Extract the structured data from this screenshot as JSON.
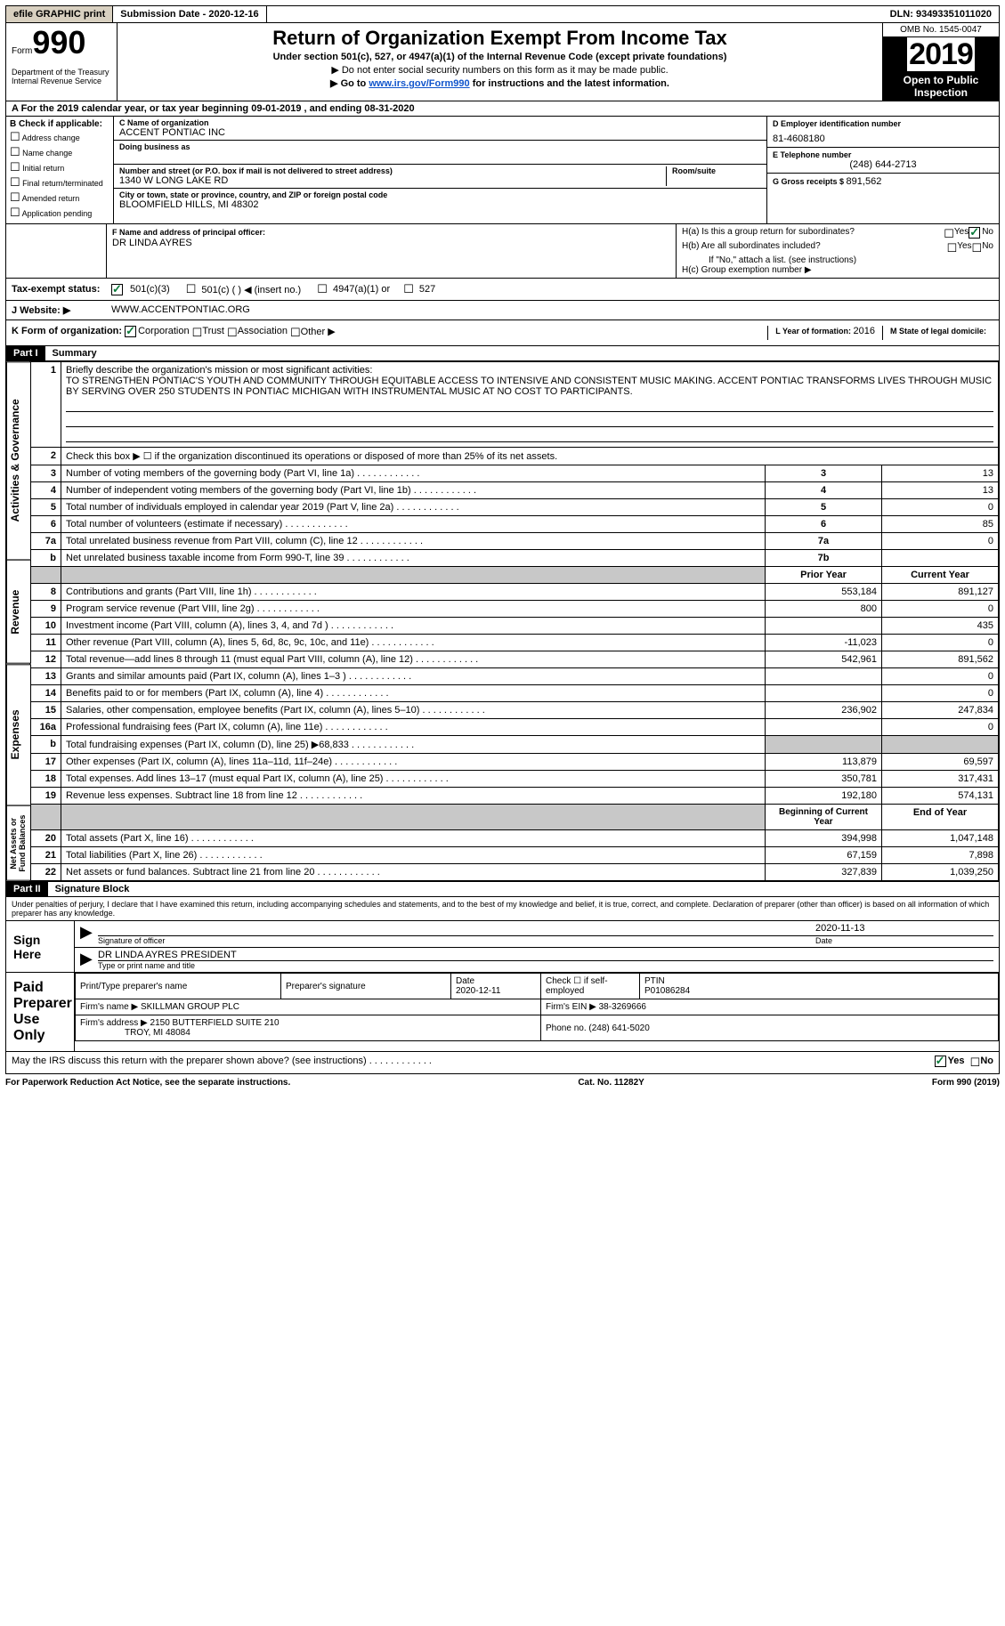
{
  "topbar": {
    "efile": "efile GRAPHIC print",
    "submission_label": "Submission Date - ",
    "submission_date": "2020-12-16",
    "dln_label": "DLN: ",
    "dln": "93493351011020"
  },
  "header": {
    "form_label": "Form",
    "form_number": "990",
    "title": "Return of Organization Exempt From Income Tax",
    "subtitle": "Under section 501(c), 527, or 4947(a)(1) of the Internal Revenue Code (except private foundations)",
    "note1": "▶ Do not enter social security numbers on this form as it may be made public.",
    "note2_pre": "▶ Go to ",
    "note2_link": "www.irs.gov/Form990",
    "note2_post": " for instructions and the latest information.",
    "omb": "OMB No. 1545-0047",
    "year": "2019",
    "open": "Open to Public Inspection",
    "dept": "Department of the Treasury\nInternal Revenue Service"
  },
  "line_a": {
    "text_pre": "A For the 2019 calendar year, or tax year beginning ",
    "begin": "09-01-2019",
    "text_mid": " , and ending ",
    "end": "08-31-2020"
  },
  "box_b": {
    "title": "B Check if applicable:",
    "items": [
      "Address change",
      "Name change",
      "Initial return",
      "Final return/terminated",
      "Amended return",
      "Application pending"
    ]
  },
  "box_c": {
    "name_lbl": "C Name of organization",
    "name": "ACCENT PONTIAC INC",
    "dba_lbl": "Doing business as",
    "street_lbl": "Number and street (or P.O. box if mail is not delivered to street address)",
    "room_lbl": "Room/suite",
    "street": "1340 W LONG LAKE RD",
    "city_lbl": "City or town, state or province, country, and ZIP or foreign postal code",
    "city": "BLOOMFIELD HILLS, MI  48302"
  },
  "box_d": {
    "ein_lbl": "D Employer identification number",
    "ein": "81-4608180",
    "phone_lbl": "E Telephone number",
    "phone": "(248) 644-2713",
    "gross_lbl": "G Gross receipts $ ",
    "gross": "891,562"
  },
  "box_f": {
    "lbl": "F Name and address of principal officer:",
    "name": "DR LINDA AYRES"
  },
  "box_h": {
    "ha": "H(a)  Is this a group return for subordinates?",
    "hb": "H(b)  Are all subordinates included?",
    "hb_note": "If \"No,\" attach a list. (see instructions)",
    "hc": "H(c)  Group exemption number ▶",
    "yes": "Yes",
    "no": "No"
  },
  "line_i": {
    "lbl": "Tax-exempt status:",
    "o1": "501(c)(3)",
    "o2": "501(c) (   ) ◀ (insert no.)",
    "o3": "4947(a)(1) or",
    "o4": "527"
  },
  "line_j": {
    "lbl": "J     Website: ▶",
    "val": "WWW.ACCENTPONTIAC.ORG"
  },
  "line_k": {
    "lbl": "K Form of organization:",
    "o1": "Corporation",
    "o2": "Trust",
    "o3": "Association",
    "o4": "Other ▶",
    "l_lbl": "L Year of formation: ",
    "l_val": "2016",
    "m_lbl": "M State of legal domicile:",
    "m_val": ""
  },
  "part1": {
    "part": "Part I",
    "title": "Summary",
    "q1_lbl": "1",
    "q1": "Briefly describe the organization's mission or most significant activities:",
    "mission": "TO STRENGTHEN PONTIAC'S YOUTH AND COMMUNITY THROUGH EQUITABLE ACCESS TO INTENSIVE AND CONSISTENT MUSIC MAKING. ACCENT PONTIAC TRANSFORMS LIVES THROUGH MUSIC BY SERVING OVER 250 STUDENTS IN PONTIAC MICHIGAN WITH INSTRUMENTAL MUSIC AT NO COST TO PARTICIPANTS.",
    "q2": "Check this box ▶ ☐  if the organization discontinued its operations or disposed of more than 25% of its net assets.",
    "sidebar1": "Activities & Governance",
    "sidebar2": "Revenue",
    "sidebar3": "Expenses",
    "sidebar4": "Net Assets or Fund Balances",
    "col_prior": "Prior Year",
    "col_current": "Current Year",
    "col_begin": "Beginning of Current Year",
    "col_end": "End of Year",
    "rows_gov": [
      {
        "n": "3",
        "t": "Number of voting members of the governing body (Part VI, line 1a)",
        "box": "3",
        "v": "13"
      },
      {
        "n": "4",
        "t": "Number of independent voting members of the governing body (Part VI, line 1b)",
        "box": "4",
        "v": "13"
      },
      {
        "n": "5",
        "t": "Total number of individuals employed in calendar year 2019 (Part V, line 2a)",
        "box": "5",
        "v": "0"
      },
      {
        "n": "6",
        "t": "Total number of volunteers (estimate if necessary)",
        "box": "6",
        "v": "85"
      },
      {
        "n": "7a",
        "t": "Total unrelated business revenue from Part VIII, column (C), line 12",
        "box": "7a",
        "v": "0"
      },
      {
        "n": "b",
        "t": "Net unrelated business taxable income from Form 990-T, line 39",
        "box": "7b",
        "v": ""
      }
    ],
    "rows_rev": [
      {
        "n": "8",
        "t": "Contributions and grants (Part VIII, line 1h)",
        "p": "553,184",
        "c": "891,127"
      },
      {
        "n": "9",
        "t": "Program service revenue (Part VIII, line 2g)",
        "p": "800",
        "c": "0"
      },
      {
        "n": "10",
        "t": "Investment income (Part VIII, column (A), lines 3, 4, and 7d )",
        "p": "",
        "c": "435"
      },
      {
        "n": "11",
        "t": "Other revenue (Part VIII, column (A), lines 5, 6d, 8c, 9c, 10c, and 11e)",
        "p": "-11,023",
        "c": "0"
      },
      {
        "n": "12",
        "t": "Total revenue—add lines 8 through 11 (must equal Part VIII, column (A), line 12)",
        "p": "542,961",
        "c": "891,562"
      }
    ],
    "rows_exp": [
      {
        "n": "13",
        "t": "Grants and similar amounts paid (Part IX, column (A), lines 1–3 )",
        "p": "",
        "c": "0"
      },
      {
        "n": "14",
        "t": "Benefits paid to or for members (Part IX, column (A), line 4)",
        "p": "",
        "c": "0"
      },
      {
        "n": "15",
        "t": "Salaries, other compensation, employee benefits (Part IX, column (A), lines 5–10)",
        "p": "236,902",
        "c": "247,834"
      },
      {
        "n": "16a",
        "t": "Professional fundraising fees (Part IX, column (A), line 11e)",
        "p": "",
        "c": "0"
      },
      {
        "n": "b",
        "t": "Total fundraising expenses (Part IX, column (D), line 25) ▶68,833",
        "p": "grey",
        "c": "grey"
      },
      {
        "n": "17",
        "t": "Other expenses (Part IX, column (A), lines 11a–11d, 11f–24e)",
        "p": "113,879",
        "c": "69,597"
      },
      {
        "n": "18",
        "t": "Total expenses. Add lines 13–17 (must equal Part IX, column (A), line 25)",
        "p": "350,781",
        "c": "317,431"
      },
      {
        "n": "19",
        "t": "Revenue less expenses. Subtract line 18 from line 12",
        "p": "192,180",
        "c": "574,131"
      }
    ],
    "rows_net": [
      {
        "n": "20",
        "t": "Total assets (Part X, line 16)",
        "p": "394,998",
        "c": "1,047,148"
      },
      {
        "n": "21",
        "t": "Total liabilities (Part X, line 26)",
        "p": "67,159",
        "c": "7,898"
      },
      {
        "n": "22",
        "t": "Net assets or fund balances. Subtract line 21 from line 20",
        "p": "327,839",
        "c": "1,039,250"
      }
    ]
  },
  "part2": {
    "part": "Part II",
    "title": "Signature Block",
    "decl": "Under penalties of perjury, I declare that I have examined this return, including accompanying schedules and statements, and to the best of my knowledge and belief, it is true, correct, and complete. Declaration of preparer (other than officer) is based on all information of which preparer has any knowledge.",
    "sign_here": "Sign Here",
    "sig_officer_lbl": "Signature of officer",
    "sig_date_lbl": "Date",
    "sig_date": "2020-11-13",
    "sig_name": "DR LINDA AYRES  PRESIDENT",
    "sig_name_lbl": "Type or print name and title",
    "paid": "Paid Preparer Use Only",
    "prep_name_lbl": "Print/Type preparer's name",
    "prep_sig_lbl": "Preparer's signature",
    "prep_date_lbl": "Date",
    "prep_date": "2020-12-11",
    "prep_check_lbl": "Check ☐ if self-employed",
    "ptin_lbl": "PTIN",
    "ptin": "P01086284",
    "firm_name_lbl": "Firm's name    ▶",
    "firm_name": "SKILLMAN GROUP PLC",
    "firm_ein_lbl": "Firm's EIN ▶",
    "firm_ein": "38-3269666",
    "firm_addr_lbl": "Firm's address ▶",
    "firm_addr1": "2150 BUTTERFIELD SUITE 210",
    "firm_addr2": "TROY, MI  48084",
    "firm_phone_lbl": "Phone no. ",
    "firm_phone": "(248) 641-5020",
    "may_irs": "May the IRS discuss this return with the preparer shown above? (see instructions)",
    "yes": "Yes",
    "no": "No"
  },
  "footer": {
    "left": "For Paperwork Reduction Act Notice, see the separate instructions.",
    "mid": "Cat. No. 11282Y",
    "right": "Form 990 (2019)"
  }
}
